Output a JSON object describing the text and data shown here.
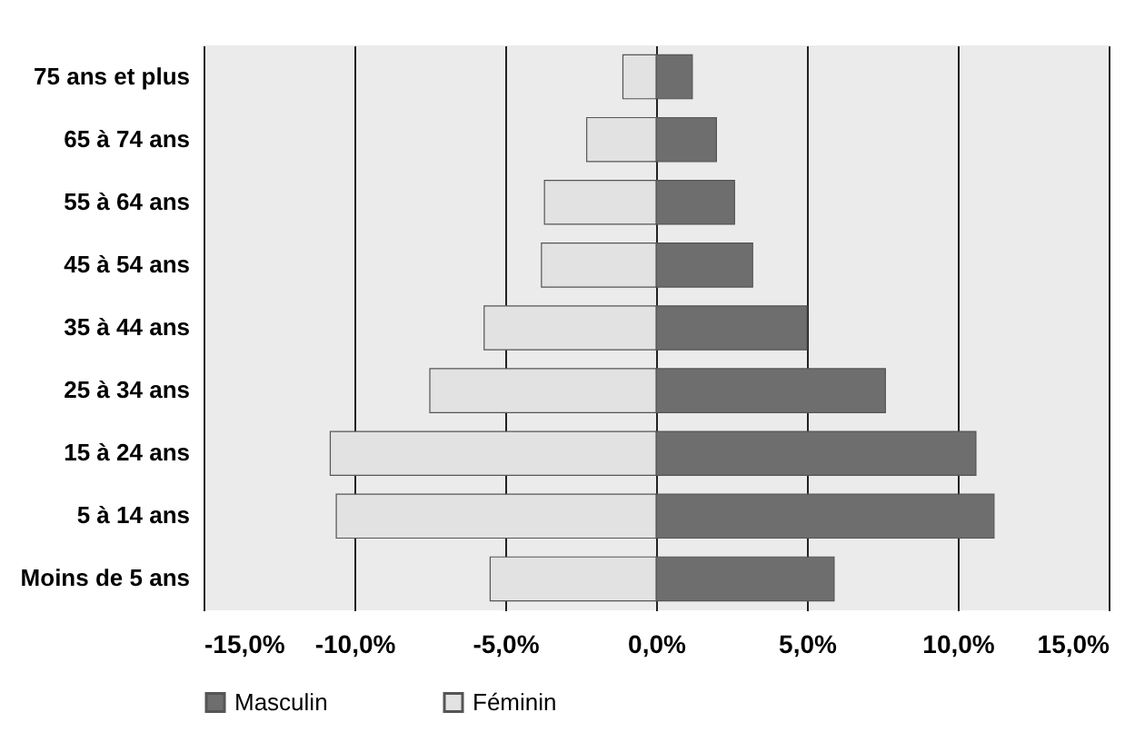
{
  "chart_data": {
    "type": "bar",
    "orientation": "horizontal",
    "categories": [
      "75 ans et plus",
      "65 à 74 ans",
      "55 à 64 ans",
      "45 à 54 ans",
      "35 à 44 ans",
      "25 à 34 ans",
      "15 à 24 ans",
      "5 à 14 ans",
      "Moins de 5 ans"
    ],
    "series": [
      {
        "name": "Masculin",
        "color": "#6e6e6e",
        "values": [
          1.2,
          2.0,
          2.6,
          3.2,
          5.0,
          7.6,
          10.6,
          11.2,
          5.9
        ]
      },
      {
        "name": "Féminin",
        "color": "#e2e2e2",
        "values": [
          -1.1,
          -2.3,
          -3.7,
          -3.8,
          -5.7,
          -7.5,
          -10.8,
          -10.6,
          -5.5
        ]
      }
    ],
    "xlim": [
      -15,
      15
    ],
    "xticks": [
      {
        "value": -15,
        "label": "-15,0%"
      },
      {
        "value": -10,
        "label": "-10,0%"
      },
      {
        "value": -5,
        "label": "-5,0%"
      },
      {
        "value": 0,
        "label": "0,0%"
      },
      {
        "value": 5,
        "label": "5,0%"
      },
      {
        "value": 10,
        "label": "10,0%"
      },
      {
        "value": 15,
        "label": "15,0%"
      }
    ],
    "grid": "x",
    "legend": "bottom",
    "stacked": true
  }
}
